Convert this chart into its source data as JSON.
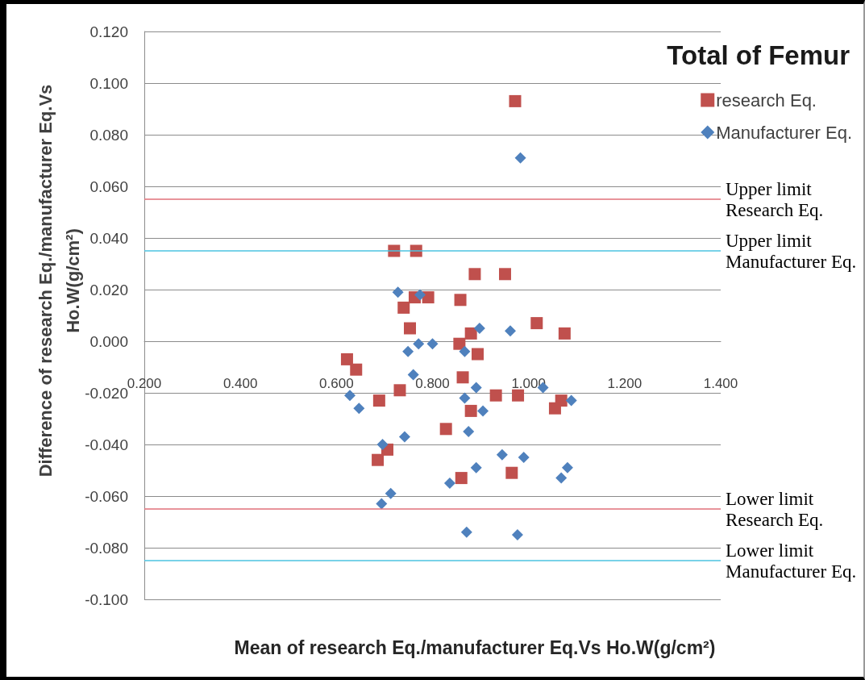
{
  "chart_data": {
    "type": "scatter",
    "title": "Total of Femur",
    "xlabel": "Mean of research Eq./manufacturer Eq.Vs Ho.W(g/cm²)",
    "ylabel": "Difference of research Eq./manufacturer Eq.Vs Ho.W(g/cm²)",
    "series": [
      {
        "name": "research Eq.",
        "color": "#c0504d",
        "marker": "square",
        "x": [
          0.972,
          0.72,
          0.766,
          0.888,
          0.951,
          0.74,
          0.763,
          0.791,
          0.858,
          0.753,
          1.017,
          1.075,
          0.88,
          0.856,
          0.894,
          0.622,
          0.641,
          0.863,
          0.732,
          0.689,
          0.932,
          0.978,
          0.88,
          1.068,
          1.055,
          0.828,
          0.706,
          0.686,
          0.86,
          0.965
        ],
        "values": [
          0.093,
          0.035,
          0.035,
          0.026,
          0.026,
          0.013,
          0.017,
          0.017,
          0.016,
          0.005,
          0.007,
          0.003,
          0.003,
          -0.001,
          -0.005,
          -0.007,
          -0.011,
          -0.014,
          -0.019,
          -0.023,
          -0.021,
          -0.021,
          -0.027,
          -0.023,
          -0.026,
          -0.034,
          -0.042,
          -0.046,
          -0.053,
          -0.051
        ]
      },
      {
        "name": "Manufacturer Eq.",
        "color": "#4f81bd",
        "marker": "diamond",
        "x": [
          0.983,
          0.728,
          0.774,
          0.898,
          0.962,
          0.749,
          0.771,
          0.8,
          0.867,
          0.76,
          0.628,
          0.647,
          0.867,
          0.891,
          0.905,
          1.03,
          1.089,
          0.742,
          0.875,
          0.696,
          0.945,
          0.99,
          0.891,
          1.081,
          1.068,
          0.836,
          0.713,
          0.694,
          0.871,
          0.977
        ],
        "values": [
          0.071,
          0.019,
          0.018,
          0.005,
          0.004,
          -0.004,
          -0.001,
          -0.001,
          -0.004,
          -0.013,
          -0.021,
          -0.026,
          -0.022,
          -0.018,
          -0.027,
          -0.018,
          -0.023,
          -0.037,
          -0.035,
          -0.04,
          -0.044,
          -0.045,
          -0.049,
          -0.049,
          -0.053,
          -0.055,
          -0.059,
          -0.063,
          -0.074,
          -0.075
        ]
      }
    ],
    "xlim": [
      0.2,
      1.4
    ],
    "xticks": [
      {
        "value": 0.2,
        "label": "0.200"
      },
      {
        "value": 0.4,
        "label": "0.400"
      },
      {
        "value": 0.6,
        "label": "0.600"
      },
      {
        "value": 0.8,
        "label": "0.800"
      },
      {
        "value": 1.0,
        "label": "1.000"
      },
      {
        "value": 1.2,
        "label": "1.200"
      },
      {
        "value": 1.4,
        "label": "1.400"
      }
    ],
    "ylim": [
      -0.1,
      0.12
    ],
    "yticks": [
      {
        "value": -0.1,
        "label": "-0.100"
      },
      {
        "value": -0.08,
        "label": "-0.080"
      },
      {
        "value": -0.06,
        "label": "-0.060"
      },
      {
        "value": -0.04,
        "label": "-0.040"
      },
      {
        "value": -0.02,
        "label": "-0.020"
      },
      {
        "value": 0,
        "label": "0.000"
      },
      {
        "value": 0.02,
        "label": "0.020"
      },
      {
        "value": 0.04,
        "label": "0.040"
      },
      {
        "value": 0.06,
        "label": "0.060"
      },
      {
        "value": 0.08,
        "label": "0.080"
      },
      {
        "value": 0.1,
        "label": "0.100"
      },
      {
        "value": 0.12,
        "label": "0.120"
      }
    ],
    "ref_lines": [
      {
        "axis": "y",
        "value": 0.055,
        "label": "Upper limit Research Eq.",
        "color": "#e0707a"
      },
      {
        "axis": "y",
        "value": 0.035,
        "label": "Upper limit Manufacturer Eq.",
        "color": "#4cc3e0"
      },
      {
        "axis": "y",
        "value": -0.065,
        "label": "Lower limit Research Eq.",
        "color": "#e0707a"
      },
      {
        "axis": "y",
        "value": -0.085,
        "label": "Lower limit Manufacturer Eq.",
        "color": "#4cc3e0"
      }
    ],
    "grid": "y",
    "legend": "top right"
  }
}
